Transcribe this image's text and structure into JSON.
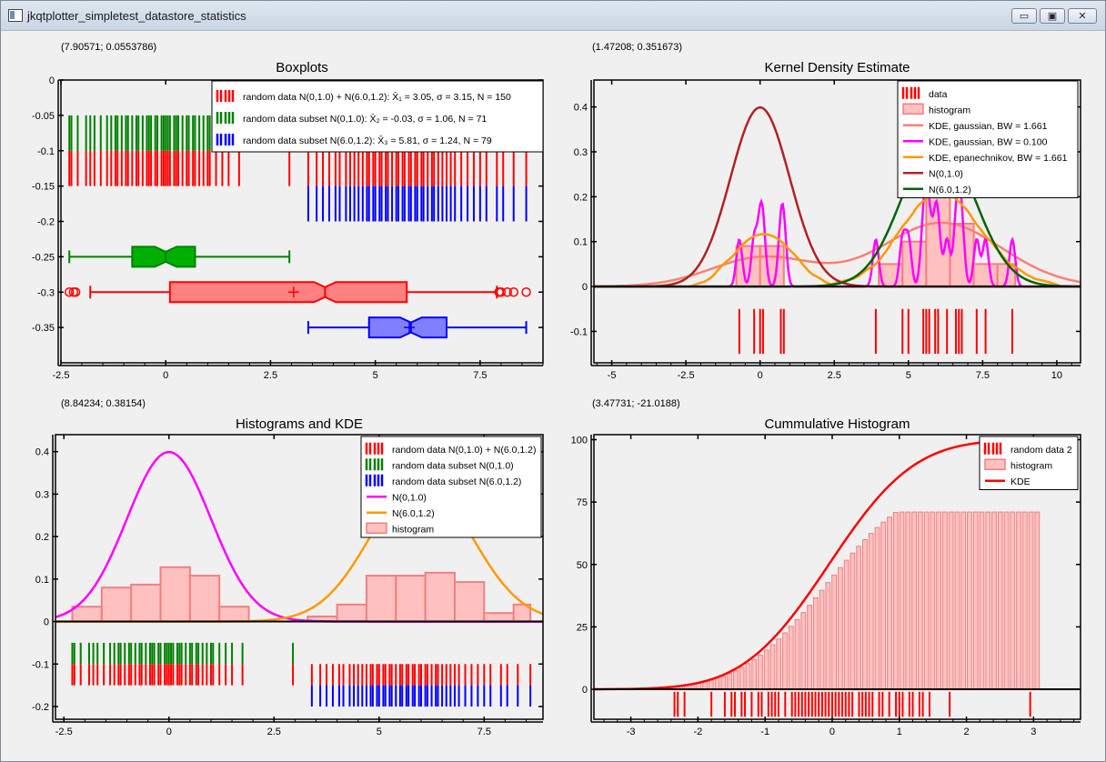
{
  "window": {
    "title": "jkqtplotter_simpletest_datastore_statistics",
    "min_glyph": "▭",
    "max_glyph": "▣",
    "close_glyph": "✕"
  },
  "colors": {
    "red": "#ff0000",
    "green": "#008000",
    "blue": "#0000ff",
    "magenta": "#ff00ff",
    "orange": "#ff9900",
    "darkred": "#b22222",
    "darkgreen": "#006400",
    "salmon": "#fa8072",
    "histfill": "#ffc0c0",
    "histedge": "#f08080"
  },
  "panels": {
    "boxplots": {
      "coords": "(7.90571; 0.0553786)"
    },
    "kde": {
      "coords": "(1.47208; 0.351673)"
    },
    "hist": {
      "coords": "(8.84234; 0.38154)"
    },
    "cum": {
      "coords": "(3.47731; -21.0188)"
    }
  },
  "chart_data": [
    {
      "id": "boxplots",
      "type": "boxplot",
      "title": "Boxplots",
      "xlim": [
        -2.5,
        9
      ],
      "ylim": [
        -0.4,
        0
      ],
      "xticks": [
        -2.5,
        0,
        2.5,
        5,
        7.5
      ],
      "xtick_labels": [
        "-2.5",
        "0",
        "2.5",
        "5",
        "7.5"
      ],
      "yticks": [
        0,
        -0.05,
        -0.1,
        -0.15,
        -0.2,
        -0.25,
        -0.3,
        -0.35
      ],
      "ytick_labels": [
        "0",
        "-0.05",
        "-0.1",
        "-0.15",
        "-0.2",
        "-0.25",
        "-0.3",
        "-0.35"
      ],
      "legend": [
        {
          "label": "random data N(0,1.0) + N(6.0,1.2): X̄₁ = 3.05, σ = 3.15, N = 150",
          "color": "#ff0000",
          "kind": "rug"
        },
        {
          "label": "random data subset N(0,1.0): X̄₂ = -0.03, σ = 1.06, N = 71",
          "color": "#008000",
          "kind": "rug"
        },
        {
          "label": "random data subset N(6.0,1.2): X̄₃ = 5.81, σ = 1.24, N = 79",
          "color": "#0000ff",
          "kind": "rug"
        }
      ],
      "boxes": [
        {
          "name": "subset N(0,1.0)",
          "color": "#008000",
          "fill": "#00b000",
          "y": -0.25,
          "whisker_lo": -2.3,
          "q1": -0.8,
          "median": 0,
          "q3": 0.7,
          "whisker_hi": 2.95,
          "mean": null,
          "outliers": []
        },
        {
          "name": "N(0,1.0) + N(6.0,1.2)",
          "color": "#ff0000",
          "fill": "#ff8080",
          "y": -0.3,
          "whisker_lo": -1.8,
          "q1": 0.1,
          "median": 3.8,
          "q3": 5.75,
          "whisker_hi": 7.9,
          "mean": 3.05,
          "outliers": [
            -2.3,
            -2.2,
            -2.15,
            7.95,
            8.0,
            8.15,
            8.3,
            8.6
          ]
        },
        {
          "name": "subset N(6.0,1.2)",
          "color": "#0000ff",
          "fill": "#8080ff",
          "y": -0.35,
          "whisker_lo": 3.4,
          "q1": 4.85,
          "median": 5.85,
          "q3": 6.7,
          "whisker_hi": 8.6,
          "mean": 5.81,
          "outliers": []
        }
      ],
      "rugs": [
        {
          "color": "#ff0000",
          "y0": -0.1,
          "y1": -0.15,
          "points": [
            -2.3,
            -2.25,
            -2.1,
            -1.9,
            -1.8,
            -1.7,
            -1.55,
            -1.4,
            -1.3,
            -1.2,
            -1.15,
            -1.05,
            -0.95,
            -0.9,
            -0.8,
            -0.7,
            -0.65,
            -0.55,
            -0.45,
            -0.4,
            -0.35,
            -0.25,
            -0.2,
            -0.1,
            -0.05,
            0.0,
            0.05,
            0.1,
            0.2,
            0.25,
            0.3,
            0.4,
            0.5,
            0.55,
            0.65,
            0.7,
            0.8,
            0.9,
            1.0,
            1.05,
            1.2,
            1.35,
            1.5,
            1.75,
            2.95,
            3.4,
            3.6,
            3.75,
            3.9,
            4.05,
            4.15,
            4.3,
            4.4,
            4.5,
            4.6,
            4.7,
            4.8,
            4.85,
            4.95,
            5.0,
            5.1,
            5.15,
            5.25,
            5.3,
            5.4,
            5.5,
            5.55,
            5.65,
            5.7,
            5.8,
            5.85,
            5.95,
            6.0,
            6.1,
            6.15,
            6.25,
            6.35,
            6.4,
            6.5,
            6.6,
            6.7,
            6.8,
            6.9,
            7.05,
            7.2,
            7.35,
            7.5,
            7.65,
            7.9,
            8.05,
            8.3,
            8.6
          ]
        },
        {
          "color": "#008000",
          "y0": -0.05,
          "y1": -0.1,
          "points": [
            -2.3,
            -2.25,
            -2.1,
            -1.9,
            -1.8,
            -1.7,
            -1.55,
            -1.4,
            -1.3,
            -1.2,
            -1.15,
            -1.05,
            -0.95,
            -0.9,
            -0.8,
            -0.7,
            -0.65,
            -0.55,
            -0.45,
            -0.4,
            -0.35,
            -0.25,
            -0.2,
            -0.1,
            -0.05,
            0.0,
            0.05,
            0.1,
            0.2,
            0.25,
            0.3,
            0.4,
            0.5,
            0.55,
            0.65,
            0.7,
            0.8,
            0.9,
            1.0,
            1.05,
            1.2,
            1.35,
            1.5,
            1.75,
            2.95
          ]
        },
        {
          "color": "#0000ff",
          "y0": -0.15,
          "y1": -0.2,
          "points": [
            3.4,
            3.6,
            3.75,
            3.9,
            4.05,
            4.15,
            4.3,
            4.4,
            4.5,
            4.6,
            4.7,
            4.8,
            4.85,
            4.95,
            5.0,
            5.1,
            5.15,
            5.25,
            5.3,
            5.4,
            5.5,
            5.55,
            5.65,
            5.7,
            5.8,
            5.85,
            5.95,
            6.0,
            6.1,
            6.15,
            6.25,
            6.35,
            6.4,
            6.5,
            6.6,
            6.7,
            6.8,
            6.9,
            7.05,
            7.2,
            7.35,
            7.5,
            7.65,
            7.9,
            8.05,
            8.3,
            8.6
          ]
        }
      ]
    },
    {
      "id": "kde",
      "type": "line",
      "title": "Kernel Density Estimate",
      "xlim": [
        -5.6,
        10.8
      ],
      "ylim": [
        -0.17,
        0.46
      ],
      "xticks": [
        -5,
        -2.5,
        0,
        2.5,
        5,
        7.5,
        10
      ],
      "xtick_labels": [
        "-5",
        "-2.5",
        "0",
        "2.5",
        "5",
        "7.5",
        "10"
      ],
      "yticks": [
        -0.1,
        0,
        0.1,
        0.2,
        0.3,
        0.4
      ],
      "ytick_labels": [
        "-0.1",
        "0",
        "0.1",
        "0.2",
        "0.3",
        "0.4"
      ],
      "legend": [
        {
          "label": "data",
          "color": "#ff0000",
          "kind": "rug"
        },
        {
          "label": "histogram",
          "color": "#f08080",
          "kind": "hist"
        },
        {
          "label": "KDE, gaussian, BW = 1.661",
          "color": "#fa8072",
          "kind": "line"
        },
        {
          "label": "KDE, gaussian, BW = 0.100",
          "color": "#ff00ff",
          "kind": "line"
        },
        {
          "label": "KDE, epanechnikov, BW = 1.661",
          "color": "#ff9900",
          "kind": "line"
        },
        {
          "label": "N(0,1.0)",
          "color": "#b22222",
          "kind": "line"
        },
        {
          "label": "N(6.0,1.2)",
          "color": "#006400",
          "kind": "line"
        }
      ],
      "data_points": [
        -0.7,
        -0.2,
        0.0,
        0.1,
        0.7,
        0.8,
        3.9,
        4.8,
        5.0,
        5.5,
        5.6,
        5.7,
        5.9,
        6.0,
        6.3,
        6.6,
        6.7,
        6.8,
        7.3,
        7.6,
        8.5
      ],
      "rug_y": [
        -0.05,
        -0.15
      ],
      "histogram": {
        "edges": [
          -0.8,
          0.0,
          0.8,
          1.6,
          2.4,
          3.2,
          4.0,
          4.8,
          5.6,
          6.4,
          7.2,
          8.0,
          8.6
        ],
        "values": [
          0.09,
          0.09,
          0.0,
          0.0,
          0.0,
          0.0,
          0.05,
          0.1,
          0.22,
          0.14,
          0.05,
          0.05
        ]
      },
      "series": [
        {
          "name": "KDE, gaussian, BW = 1.661",
          "color": "#fa8072",
          "kind": "gauss_mix",
          "bw": 1.661,
          "scale": 1.0
        },
        {
          "name": "KDE, gaussian, BW = 0.100",
          "color": "#ff00ff",
          "kind": "gauss_mix",
          "bw": 0.1,
          "scale": 0.55
        },
        {
          "name": "KDE, epanechnikov, BW = 1.661",
          "color": "#ff9900",
          "kind": "epan_mix",
          "bw": 1.661,
          "scale": 1.0
        },
        {
          "name": "N(0,1.0)",
          "color": "#b22222",
          "kind": "normal",
          "mu": 0,
          "sigma": 1.0
        },
        {
          "name": "N(6.0,1.2)",
          "color": "#006400",
          "kind": "normal",
          "mu": 6.0,
          "sigma": 1.2
        }
      ]
    },
    {
      "id": "hist",
      "type": "bar",
      "title": "Histograms and KDE",
      "xlim": [
        -2.7,
        8.9
      ],
      "ylim": [
        -0.23,
        0.44
      ],
      "xticks": [
        -2.5,
        0,
        2.5,
        5,
        7.5
      ],
      "xtick_labels": [
        "-2.5",
        "0",
        "2.5",
        "5",
        "7.5"
      ],
      "yticks": [
        -0.2,
        -0.1,
        0,
        0.1,
        0.2,
        0.3,
        0.4
      ],
      "ytick_labels": [
        "-0.2",
        "-0.1",
        "0",
        "0.1",
        "0.2",
        "0.3",
        "0.4"
      ],
      "legend": [
        {
          "label": "random data N(0,1.0) + N(6.0,1.2)",
          "color": "#ff0000",
          "kind": "rug"
        },
        {
          "label": "random data subset N(0,1.0)",
          "color": "#008000",
          "kind": "rug"
        },
        {
          "label": "random data subset N(6.0,1.2)",
          "color": "#0000ff",
          "kind": "rug"
        },
        {
          "label": "N(0,1.0)",
          "color": "#ff00ff",
          "kind": "line"
        },
        {
          "label": "N(6.0,1.2)",
          "color": "#ff9900",
          "kind": "line"
        },
        {
          "label": "histogram",
          "color": "#f08080",
          "kind": "hist"
        }
      ],
      "histogram": {
        "edges": [
          -2.3,
          -1.6,
          -0.9,
          -0.2,
          0.5,
          1.2,
          1.9,
          2.6,
          3.3,
          4.0,
          4.7,
          5.4,
          6.1,
          6.8,
          7.5,
          8.2,
          8.6
        ],
        "values": [
          0.035,
          0.08,
          0.087,
          0.128,
          0.108,
          0.035,
          0.0,
          0.0,
          0.012,
          0.04,
          0.108,
          0.108,
          0.115,
          0.093,
          0.02,
          0.04
        ]
      },
      "series": [
        {
          "name": "N(0,1.0)",
          "color": "#ff00ff",
          "kind": "normal",
          "mu": 0,
          "sigma": 1.0
        },
        {
          "name": "N(6.0,1.2)",
          "color": "#ff9900",
          "kind": "normal",
          "mu": 6.0,
          "sigma": 1.2
        }
      ],
      "rugs": [
        {
          "color": "#008000",
          "y0": -0.05,
          "y1": -0.1,
          "points": [
            -2.3,
            -2.25,
            -2.1,
            -1.9,
            -1.8,
            -1.7,
            -1.55,
            -1.4,
            -1.3,
            -1.2,
            -1.15,
            -1.05,
            -0.95,
            -0.9,
            -0.8,
            -0.7,
            -0.65,
            -0.55,
            -0.45,
            -0.4,
            -0.35,
            -0.25,
            -0.2,
            -0.1,
            -0.05,
            0.0,
            0.05,
            0.1,
            0.2,
            0.25,
            0.3,
            0.4,
            0.5,
            0.55,
            0.65,
            0.7,
            0.8,
            0.9,
            1.0,
            1.05,
            1.2,
            1.35,
            1.5,
            1.75,
            2.95
          ]
        },
        {
          "color": "#ff0000",
          "y0": -0.1,
          "y1": -0.15,
          "points": [
            -2.3,
            -2.25,
            -2.1,
            -1.9,
            -1.8,
            -1.7,
            -1.55,
            -1.4,
            -1.3,
            -1.2,
            -1.15,
            -1.05,
            -0.95,
            -0.9,
            -0.8,
            -0.7,
            -0.65,
            -0.55,
            -0.45,
            -0.4,
            -0.35,
            -0.25,
            -0.2,
            -0.1,
            -0.05,
            0.0,
            0.05,
            0.1,
            0.2,
            0.25,
            0.3,
            0.4,
            0.5,
            0.55,
            0.65,
            0.7,
            0.8,
            0.9,
            1.0,
            1.05,
            1.2,
            1.35,
            1.5,
            1.75,
            2.95,
            3.4,
            3.6,
            3.75,
            3.9,
            4.05,
            4.15,
            4.3,
            4.4,
            4.5,
            4.6,
            4.7,
            4.8,
            4.85,
            4.95,
            5.0,
            5.1,
            5.15,
            5.25,
            5.3,
            5.4,
            5.5,
            5.55,
            5.65,
            5.7,
            5.8,
            5.85,
            5.95,
            6.0,
            6.1,
            6.15,
            6.25,
            6.35,
            6.4,
            6.5,
            6.6,
            6.7,
            6.8,
            6.9,
            7.05,
            7.2,
            7.35,
            7.5,
            7.65,
            7.9,
            8.05,
            8.3,
            8.6
          ]
        },
        {
          "color": "#0000ff",
          "y0": -0.15,
          "y1": -0.2,
          "points": [
            3.4,
            3.6,
            3.75,
            3.9,
            4.05,
            4.15,
            4.3,
            4.4,
            4.5,
            4.6,
            4.7,
            4.8,
            4.85,
            4.95,
            5.0,
            5.1,
            5.15,
            5.25,
            5.3,
            5.4,
            5.5,
            5.55,
            5.65,
            5.7,
            5.8,
            5.85,
            5.95,
            6.0,
            6.1,
            6.15,
            6.25,
            6.35,
            6.4,
            6.5,
            6.6,
            6.7,
            6.8,
            6.9,
            7.05,
            7.2,
            7.35,
            7.5,
            7.65,
            7.9,
            8.05,
            8.3,
            8.6
          ]
        }
      ]
    },
    {
      "id": "cum",
      "type": "bar",
      "title": "Cummulative Histogram",
      "xlim": [
        -3.55,
        3.7
      ],
      "ylim": [
        -12,
        102
      ],
      "xticks": [
        -3,
        -2,
        -1,
        0,
        1,
        2,
        3
      ],
      "xtick_labels": [
        "-3",
        "-2",
        "-1",
        "0",
        "1",
        "2",
        "3"
      ],
      "yticks": [
        0,
        25,
        50,
        75,
        100
      ],
      "ytick_labels": [
        "0",
        "25",
        "50",
        "75",
        "100"
      ],
      "legend": [
        {
          "label": "random data 2",
          "color": "#ff0000",
          "kind": "rug"
        },
        {
          "label": "histogram",
          "color": "#f08080",
          "kind": "hist"
        },
        {
          "label": "KDE",
          "color": "#ff0000",
          "kind": "line"
        }
      ],
      "histogram": {
        "x_start": -2.4,
        "x_end": 3.1,
        "n_bins": 60,
        "max": 71
      },
      "kde": {
        "mu": -0.05,
        "sigma": 1.0,
        "scale": 100
      },
      "rug_y": [
        -1,
        -11
      ],
      "data_points": [
        -2.35,
        -2.3,
        -2.2,
        -1.8,
        -1.6,
        -1.5,
        -1.45,
        -1.35,
        -1.3,
        -1.2,
        -1.1,
        -1.05,
        -0.95,
        -0.9,
        -0.85,
        -0.8,
        -0.7,
        -0.6,
        -0.55,
        -0.5,
        -0.45,
        -0.4,
        -0.35,
        -0.3,
        -0.25,
        -0.2,
        -0.15,
        -0.1,
        -0.05,
        0.0,
        0.05,
        0.1,
        0.15,
        0.2,
        0.25,
        0.3,
        0.4,
        0.45,
        0.5,
        0.55,
        0.6,
        0.7,
        0.75,
        0.85,
        0.95,
        1.0,
        1.05,
        1.15,
        1.2,
        1.3,
        1.35,
        1.45,
        1.75,
        2.95
      ]
    }
  ]
}
